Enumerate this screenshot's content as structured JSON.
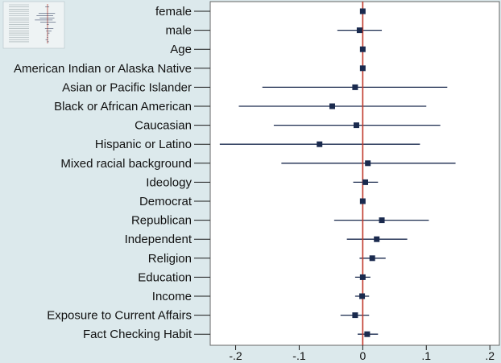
{
  "chart_data": {
    "type": "coefficient-plot",
    "title": "",
    "xlabel": "",
    "ylabel": "",
    "xlim": [
      -0.24,
      0.215
    ],
    "xticks": [
      -0.2,
      -0.1,
      0,
      0.1,
      0.2
    ],
    "xtick_labels": [
      "-.2",
      "-.1",
      "0",
      ".1",
      ".2"
    ],
    "reference_line": 0,
    "reference_line_color": "#c0392b",
    "series_color": "#1a2a4e",
    "background_color": "#dce9ec",
    "plot_background_color": "#ffffff",
    "inset_thumbnail": true,
    "categories": [
      "female",
      "male",
      "Age",
      "American Indian or Alaska Native",
      "Asian or Pacific Islander",
      "Black or African American",
      "Caucasian",
      "Hispanic or Latino",
      "Mixed racial background",
      "Ideology",
      "Democrat",
      "Republican",
      "Independent",
      "Religion",
      "Education",
      "Income",
      "Exposure to Current Affairs",
      "Fact Checking Habit"
    ],
    "estimates": [
      0.0,
      -0.005,
      0.0,
      0.0,
      -0.012,
      -0.048,
      -0.01,
      -0.068,
      0.008,
      0.004,
      0.0,
      0.03,
      0.022,
      0.015,
      0.0,
      -0.001,
      -0.012,
      0.007
    ],
    "ci_low": [
      -0.002,
      -0.04,
      -0.002,
      -0.003,
      -0.158,
      -0.195,
      -0.14,
      -0.225,
      -0.128,
      -0.015,
      -0.002,
      -0.045,
      -0.025,
      -0.005,
      -0.012,
      -0.012,
      -0.035,
      -0.008
    ],
    "ci_high": [
      0.002,
      0.03,
      0.002,
      0.003,
      0.133,
      0.1,
      0.122,
      0.09,
      0.146,
      0.024,
      0.002,
      0.104,
      0.07,
      0.036,
      0.012,
      0.01,
      0.01,
      0.024
    ]
  }
}
